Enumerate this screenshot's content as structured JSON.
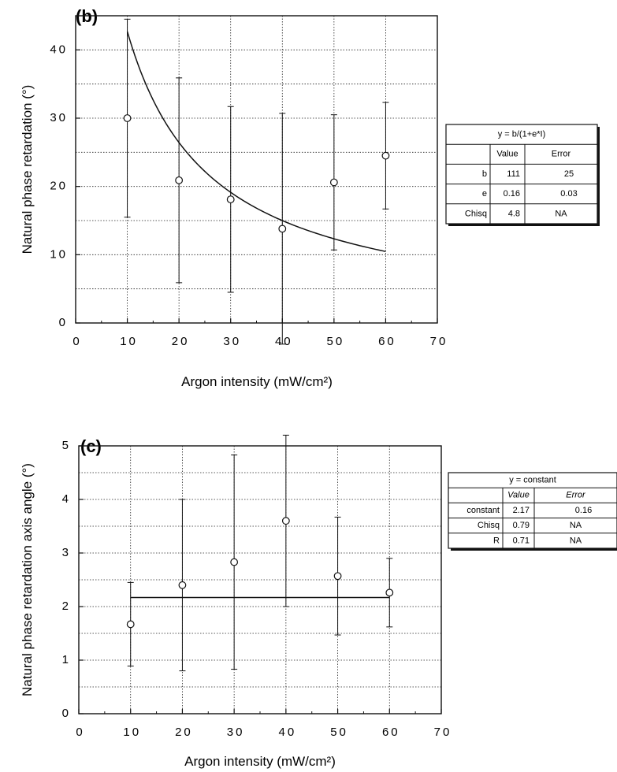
{
  "chart_data": [
    {
      "type": "scatter",
      "panel_label": "(b)",
      "xlabel": "Argon intensity  (mW/cm²)",
      "ylabel": "Natural phase retardation (°)",
      "xlim": [
        0,
        70
      ],
      "ylim": [
        0,
        45
      ],
      "x_ticks": [
        0,
        10,
        20,
        30,
        40,
        50,
        60,
        70
      ],
      "y_ticks": [
        0,
        10,
        20,
        30,
        40
      ],
      "grid": true,
      "series": [
        {
          "x": [
            10,
            20,
            30,
            40,
            50,
            60
          ],
          "y": [
            30.0,
            20.9,
            18.1,
            13.8,
            20.6,
            24.5
          ],
          "error": [
            14.5,
            15.0,
            13.6,
            16.9,
            9.9,
            7.8
          ]
        }
      ],
      "fit": {
        "kind": "b/(1+e*I)",
        "b": 111,
        "e": 0.16,
        "x_range": [
          10,
          60
        ]
      },
      "fit_table": {
        "title": "y  =  b/(1+e*I)",
        "headers": [
          "",
          "Value",
          "Error"
        ],
        "rows": [
          [
            "b",
            "111",
            "25"
          ],
          [
            "e",
            "0.16",
            "0.03"
          ],
          [
            "Chisq",
            "4.8",
            "NA"
          ]
        ]
      }
    },
    {
      "type": "scatter",
      "panel_label": "(c)",
      "xlabel": "Argon intensity  (mW/cm²)",
      "ylabel": "Natural phase retardation axis angle (°)",
      "xlim": [
        0,
        70
      ],
      "ylim": [
        0,
        5
      ],
      "x_ticks": [
        0,
        10,
        20,
        30,
        40,
        50,
        60,
        70
      ],
      "y_ticks": [
        0,
        1,
        2,
        3,
        4,
        5
      ],
      "grid": true,
      "series": [
        {
          "x": [
            10,
            20,
            30,
            40,
            50,
            60
          ],
          "y": [
            1.67,
            2.4,
            2.83,
            3.6,
            2.57,
            2.26
          ],
          "error": [
            0.78,
            1.6,
            2.0,
            1.6,
            1.1,
            0.64
          ]
        }
      ],
      "fit": {
        "kind": "constant",
        "value": 2.17,
        "x_range": [
          10,
          60
        ]
      },
      "fit_table": {
        "title": "y  =  constant",
        "headers": [
          "",
          "Value",
          "Error"
        ],
        "rows": [
          [
            "constant",
            "2.17",
            "0.16"
          ],
          [
            "Chisq",
            "0.79",
            "NA"
          ],
          [
            "R",
            "0.71",
            "NA"
          ]
        ]
      }
    }
  ]
}
